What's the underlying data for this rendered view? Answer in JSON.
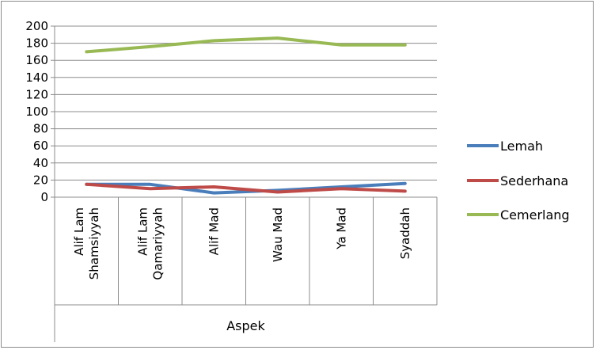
{
  "chart_data": {
    "type": "line",
    "categories": [
      [
        "Alif Lam",
        "Shamsiyyah"
      ],
      [
        "Alif Lam",
        "Qamariyyah"
      ],
      [
        "Alif Mad"
      ],
      [
        "Wau Mad"
      ],
      [
        "Ya Mad"
      ],
      [
        "Syaddah"
      ]
    ],
    "xlabel": "Aspek",
    "ylabel": "",
    "ylim": [
      0,
      200
    ],
    "yticks": [
      0,
      20,
      40,
      60,
      80,
      100,
      120,
      140,
      160,
      180,
      200
    ],
    "grid": "horizontal",
    "legend_position": "right",
    "series": [
      {
        "name": "Lemah",
        "color": "#4a7ebb",
        "values": [
          15,
          15,
          5,
          8,
          12,
          16
        ]
      },
      {
        "name": "Sederhana",
        "color": "#be4b48",
        "values": [
          15,
          10,
          12,
          6,
          10,
          7
        ]
      },
      {
        "name": "Cemerlang",
        "color": "#98b954",
        "values": [
          170,
          176,
          183,
          186,
          178,
          178
        ]
      }
    ]
  }
}
